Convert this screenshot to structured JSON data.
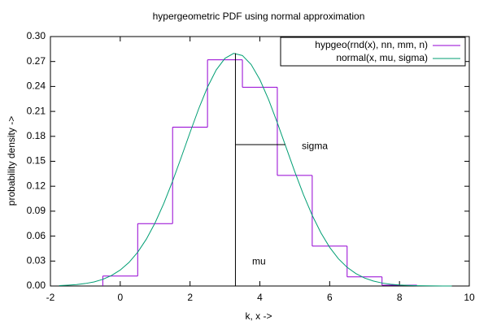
{
  "chart_data": {
    "type": "line",
    "title": "hypergeometric PDF using normal approximation",
    "xlabel": "k, x ->",
    "ylabel": "probability density ->",
    "xlim": [
      -2,
      10
    ],
    "xticks": [
      -2,
      0,
      2,
      4,
      6,
      8,
      10
    ],
    "ylim": [
      0,
      0.3
    ],
    "yticks": [
      {
        "value": 0,
        "label": "0.00"
      },
      {
        "value": 0.03,
        "label": "0.03"
      },
      {
        "value": 0.06,
        "label": "0.06"
      },
      {
        "value": 0.09,
        "label": "0.09"
      },
      {
        "value": 0.12,
        "label": "0.12"
      },
      {
        "value": 0.15,
        "label": "0.15"
      },
      {
        "value": 0.18,
        "label": "0.18"
      },
      {
        "value": 0.21,
        "label": "0.21"
      },
      {
        "value": 0.24,
        "label": "0.24"
      },
      {
        "value": 0.27,
        "label": "0.27"
      },
      {
        "value": 0.3,
        "label": "0.30"
      }
    ],
    "legend": "top-right",
    "series": [
      {
        "name": "hypgeo(rnd(x), nn, mm, n)",
        "color": "#9400d3",
        "style": "steps",
        "x": [
          0,
          1,
          2,
          3,
          4,
          5,
          6,
          7,
          8
        ],
        "values": [
          0.012,
          0.075,
          0.191,
          0.272,
          0.239,
          0.133,
          0.048,
          0.011,
          0.001
        ]
      },
      {
        "name": "normal(x, mu, sigma)",
        "color": "#009e73",
        "style": "line",
        "x": [
          -1.75,
          -1.5,
          -1.25,
          -1,
          -0.75,
          -0.5,
          -0.25,
          0,
          0.25,
          0.5,
          0.75,
          1,
          1.25,
          1.5,
          1.75,
          2,
          2.25,
          2.5,
          2.75,
          3,
          3.25,
          3.5,
          3.75,
          4,
          4.25,
          4.5,
          4.75,
          5,
          5.25,
          5.5,
          5.75,
          6,
          6.25,
          6.5,
          6.75,
          7,
          7.25,
          7.5,
          7.75,
          8,
          8.25,
          8.5,
          8.75,
          9,
          9.25,
          9.5
        ],
        "values": [
          0.0005,
          0.001,
          0.0017,
          0.003,
          0.0049,
          0.008,
          0.0126,
          0.0192,
          0.0283,
          0.0406,
          0.0565,
          0.0761,
          0.0995,
          0.1261,
          0.155,
          0.1847,
          0.2134,
          0.2392,
          0.2599,
          0.2738,
          0.2798,
          0.2772,
          0.2664,
          0.2482,
          0.2242,
          0.1964,
          0.1669,
          0.1375,
          0.1098,
          0.085,
          0.0639,
          0.0465,
          0.0328,
          0.0225,
          0.015,
          0.0096,
          0.006,
          0.0036,
          0.0021,
          0.0012,
          0.0007,
          0.0004,
          0.0002,
          0.0001,
          0,
          0
        ]
      }
    ],
    "lines": [
      {
        "x": [
          3.3,
          3.3
        ],
        "y": [
          0,
          0.28
        ]
      },
      {
        "x": [
          3.3,
          4.73
        ],
        "y": [
          0.17,
          0.17
        ]
      }
    ],
    "annotations": [
      {
        "text": "sigma",
        "x": 5.2,
        "y": 0.168
      },
      {
        "text": "mu",
        "x": 3.78,
        "y": 0.029
      }
    ]
  }
}
